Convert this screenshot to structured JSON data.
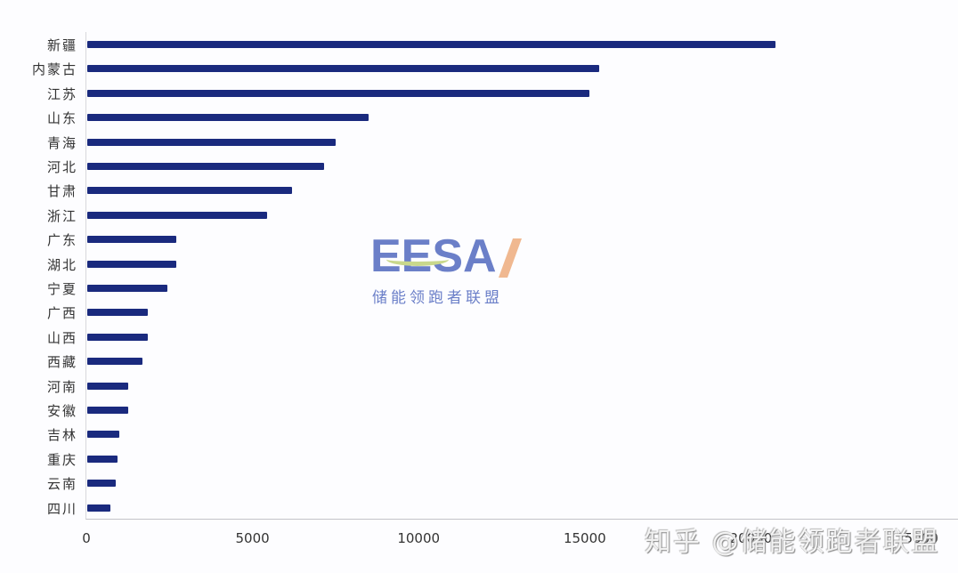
{
  "chart_data": {
    "type": "bar",
    "orientation": "horizontal",
    "title": "",
    "xlabel": "",
    "ylabel": "",
    "xlim": [
      0,
      25000
    ],
    "xticks": [
      "0",
      "5000",
      "10000",
      "15000",
      "20000",
      "25000"
    ],
    "grid": false,
    "legend": null,
    "bar_color": "#1a2a7e",
    "categories": [
      "新疆",
      "内蒙古",
      "江苏",
      "山东",
      "青海",
      "河北",
      "甘肃",
      "浙江",
      "广东",
      "湖北",
      "宁夏",
      "广西",
      "山西",
      "西藏",
      "河南",
      "安徽",
      "吉林",
      "重庆",
      "云南",
      "四川"
    ],
    "values": [
      20700,
      15400,
      15100,
      8470,
      7480,
      7130,
      6170,
      5420,
      2680,
      2680,
      2410,
      1820,
      1820,
      1660,
      1230,
      1230,
      970,
      910,
      860,
      700
    ]
  },
  "logo": {
    "text": "EESA",
    "subtitle": "储能领跑者联盟"
  },
  "watermark": "知乎 @储能领跑者联盟"
}
